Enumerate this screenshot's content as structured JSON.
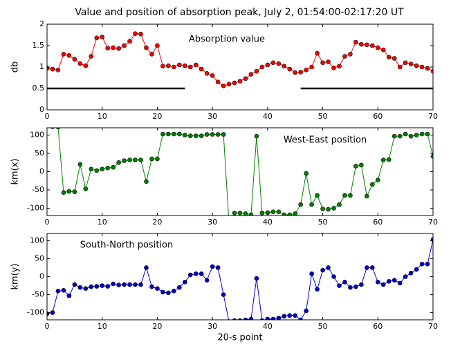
{
  "chart_data": [
    {
      "type": "line",
      "title": "Value and position of absorption peak, July 2, 01:54:00-02:17:20 UT",
      "annotation": "Absorption value",
      "ylabel": "db",
      "x": [
        0,
        1,
        2,
        3,
        4,
        5,
        6,
        7,
        8,
        9,
        10,
        11,
        12,
        13,
        14,
        15,
        16,
        17,
        18,
        19,
        20,
        21,
        22,
        23,
        24,
        25,
        26,
        27,
        28,
        29,
        30,
        31,
        32,
        33,
        34,
        35,
        36,
        37,
        38,
        39,
        40,
        41,
        42,
        43,
        44,
        45,
        46,
        47,
        48,
        49,
        50,
        51,
        52,
        53,
        54,
        55,
        56,
        57,
        58,
        59,
        60,
        61,
        62,
        63,
        64,
        65,
        66,
        67,
        68,
        69,
        70
      ],
      "series": [
        {
          "color": "#ff0000",
          "values": [
            0.97,
            0.95,
            0.93,
            1.3,
            1.27,
            1.18,
            1.08,
            1.03,
            1.25,
            1.68,
            1.7,
            1.44,
            1.45,
            1.43,
            1.5,
            1.6,
            1.78,
            1.77,
            1.45,
            1.3,
            1.5,
            1.02,
            1.03,
            1.0,
            1.05,
            1.03,
            1.0,
            1.05,
            0.95,
            0.85,
            0.8,
            0.65,
            0.56,
            0.6,
            0.63,
            0.67,
            0.73,
            0.83,
            0.9,
            1.0,
            1.05,
            1.1,
            1.08,
            1.02,
            0.95,
            0.87,
            0.88,
            0.93,
            1.0,
            1.32,
            1.1,
            1.12,
            0.98,
            1.02,
            1.25,
            1.3,
            1.58,
            1.53,
            1.52,
            1.5,
            1.45,
            1.4,
            1.23,
            1.2,
            1.0,
            1.1,
            1.07,
            1.03,
            1.0,
            0.97,
            0.9
          ]
        }
      ],
      "hlines": [
        {
          "y": 0.5,
          "xmin": 0,
          "xmax": 25
        },
        {
          "y": 0.5,
          "xmin": 46,
          "xmax": 70
        }
      ],
      "hline_color": "#000000",
      "xlim": [
        0,
        70
      ],
      "xticks": [
        0,
        10,
        20,
        30,
        40,
        50,
        60,
        70
      ],
      "ylim": [
        0,
        2
      ],
      "yticks": [
        0,
        0.5,
        1,
        1.5,
        2
      ]
    },
    {
      "type": "line",
      "annotation": "West-East position",
      "ylabel": "km(x)",
      "x": [
        0,
        1,
        2,
        3,
        4,
        5,
        6,
        7,
        8,
        9,
        10,
        11,
        12,
        13,
        14,
        15,
        16,
        17,
        18,
        19,
        20,
        21,
        22,
        23,
        24,
        25,
        26,
        27,
        28,
        29,
        30,
        31,
        32,
        33,
        34,
        35,
        36,
        37,
        38,
        39,
        40,
        41,
        42,
        43,
        44,
        45,
        46,
        47,
        48,
        49,
        50,
        51,
        52,
        53,
        54,
        55,
        56,
        57,
        58,
        59,
        60,
        61,
        62,
        63,
        64,
        65,
        66,
        67,
        68,
        69,
        70
      ],
      "series": [
        {
          "color": "#008000",
          "values": [
            125,
            123,
            122,
            -57,
            -54,
            -55,
            20,
            -47,
            7,
            3,
            7,
            10,
            12,
            25,
            30,
            32,
            32,
            32,
            -27,
            35,
            35,
            103,
            103,
            103,
            103,
            100,
            98,
            98,
            98,
            102,
            102,
            102,
            102,
            -140,
            -113,
            -113,
            -115,
            -118,
            97,
            -113,
            -112,
            -110,
            -110,
            -118,
            -118,
            -115,
            -90,
            -5,
            -90,
            -65,
            -102,
            -103,
            -100,
            -90,
            -65,
            -65,
            15,
            18,
            -67,
            -35,
            -23,
            32,
            33,
            97,
            97,
            103,
            97,
            100,
            103,
            103,
            42
          ]
        }
      ],
      "xlim": [
        0,
        70
      ],
      "xticks": [
        0,
        10,
        20,
        30,
        40,
        50,
        60,
        70
      ],
      "ylim": [
        -120,
        120
      ],
      "yticks": [
        -100,
        -50,
        0,
        50,
        100
      ]
    },
    {
      "type": "line",
      "annotation": "South-North position",
      "ylabel": "km(y)",
      "xlabel": "20-s point",
      "x": [
        0,
        1,
        2,
        3,
        4,
        5,
        6,
        7,
        8,
        9,
        10,
        11,
        12,
        13,
        14,
        15,
        16,
        17,
        18,
        19,
        20,
        21,
        22,
        23,
        24,
        25,
        26,
        27,
        28,
        29,
        30,
        31,
        32,
        33,
        34,
        35,
        36,
        37,
        38,
        39,
        40,
        41,
        42,
        43,
        44,
        45,
        46,
        47,
        48,
        49,
        50,
        51,
        52,
        53,
        54,
        55,
        56,
        57,
        58,
        59,
        60,
        61,
        62,
        63,
        64,
        65,
        66,
        67,
        68,
        69,
        70
      ],
      "series": [
        {
          "color": "#0000cc",
          "values": [
            -103,
            -100,
            -40,
            -38,
            -53,
            -22,
            -30,
            -33,
            -28,
            -27,
            -25,
            -27,
            -20,
            -23,
            -22,
            -22,
            -22,
            -22,
            25,
            -28,
            -33,
            -43,
            -45,
            -40,
            -30,
            -15,
            5,
            8,
            8,
            -10,
            28,
            25,
            -50,
            -125,
            -122,
            -122,
            -120,
            -118,
            -5,
            -122,
            -118,
            -118,
            -115,
            -110,
            -108,
            -108,
            -120,
            -95,
            8,
            -35,
            18,
            25,
            0,
            -25,
            -15,
            -30,
            -28,
            -22,
            25,
            25,
            -15,
            -22,
            -13,
            -10,
            -18,
            0,
            10,
            20,
            35,
            35,
            103
          ]
        }
      ],
      "xlim": [
        0,
        70
      ],
      "xticks": [
        0,
        10,
        20,
        30,
        40,
        50,
        60,
        70
      ],
      "ylim": [
        -120,
        120
      ],
      "yticks": [
        -100,
        -50,
        0,
        50,
        100
      ]
    }
  ]
}
